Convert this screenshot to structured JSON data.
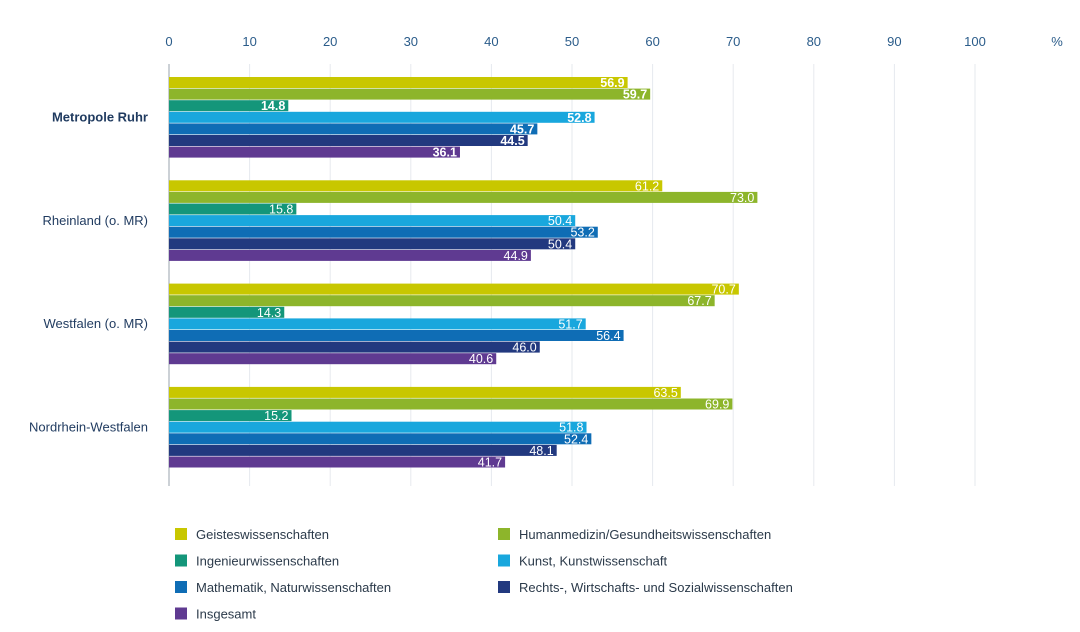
{
  "chart_data": {
    "type": "bar",
    "orientation": "horizontal",
    "unit": "%",
    "xlim": [
      0,
      100
    ],
    "ticks": [
      "0",
      "10",
      "20",
      "30",
      "40",
      "50",
      "60",
      "70",
      "80",
      "90",
      "100"
    ],
    "grid": true,
    "legend_position": "bottom",
    "categories": [
      "Metropole Ruhr",
      "Rheinland (o. MR)",
      "Westfalen (o. MR)",
      "Nordrhein-Westfalen"
    ],
    "highlight_category": "Metropole Ruhr",
    "series": [
      {
        "name": "Geisteswissenschaften",
        "color": "#c8c700",
        "values": [
          56.9,
          61.2,
          70.7,
          63.5
        ],
        "labels": [
          "56.9",
          "61.2",
          "70.7",
          "63.5"
        ]
      },
      {
        "name": "Humanmedizin/Gesundheitswissenschaften",
        "color": "#8db52b",
        "values": [
          59.7,
          73.0,
          67.7,
          69.9
        ],
        "labels": [
          "59.7",
          "73.0",
          "67.7",
          "69.9"
        ]
      },
      {
        "name": "Ingenieurwissenschaften",
        "color": "#14967a",
        "values": [
          14.8,
          15.8,
          14.3,
          15.2
        ],
        "labels": [
          "14.8",
          "15.8",
          "14.3",
          "15.2"
        ]
      },
      {
        "name": "Kunst, Kunstwissenschaft",
        "color": "#19a7dd",
        "values": [
          52.8,
          50.4,
          51.7,
          51.8
        ],
        "labels": [
          "52.8",
          "50.4",
          "51.7",
          "51.8"
        ]
      },
      {
        "name": "Mathematik, Naturwissenschaften",
        "color": "#0f6db5",
        "values": [
          45.7,
          53.2,
          56.4,
          52.4
        ],
        "labels": [
          "45.7",
          "53.2",
          "56.4",
          "52.4"
        ]
      },
      {
        "name": "Rechts-, Wirtschafts- und Sozialwissenschaften",
        "color": "#22397f",
        "values": [
          44.5,
          50.4,
          46.0,
          48.1
        ],
        "labels": [
          "44.5",
          "50.4",
          "46.0",
          "48.1"
        ]
      },
      {
        "name": "Insgesamt",
        "color": "#5f3a91",
        "values": [
          36.1,
          44.9,
          40.6,
          41.7
        ],
        "labels": [
          "36.1",
          "44.9",
          "40.6",
          "41.7"
        ]
      }
    ]
  }
}
